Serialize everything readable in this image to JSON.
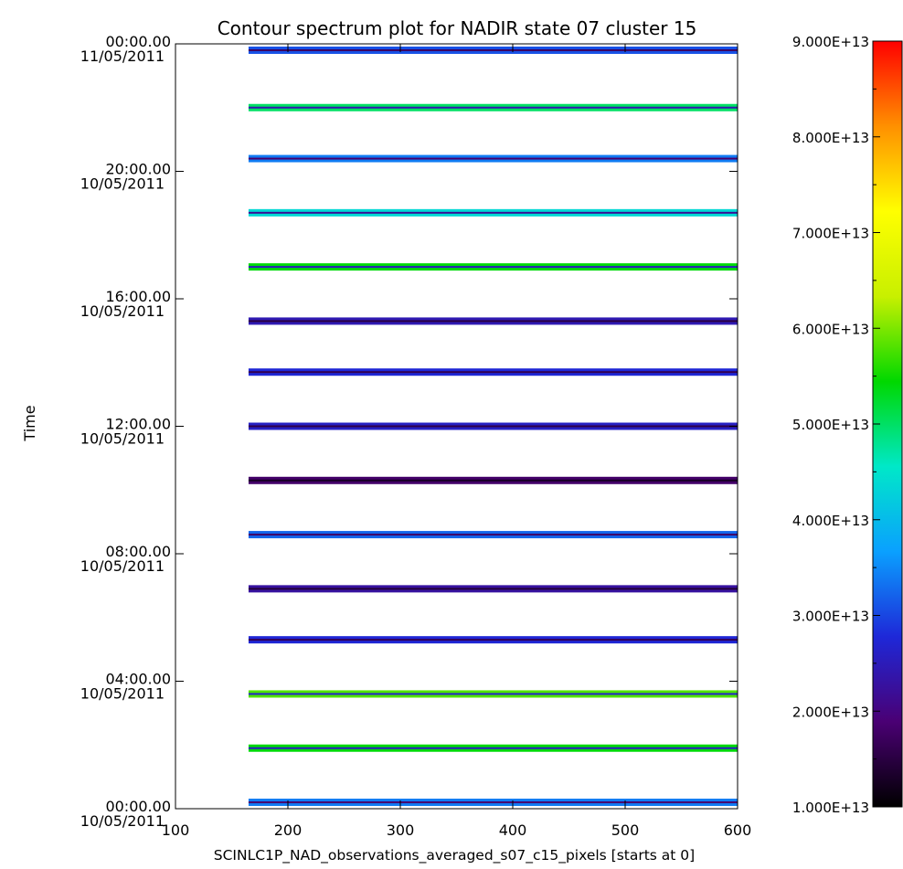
{
  "chart_data": {
    "type": "heatmap",
    "title": "Contour spectrum plot for NADIR state 07 cluster 15",
    "xlabel": "SCINLC1P_NAD_observations_averaged_s07_c15_pixels [starts at 0]",
    "ylabel": "Time",
    "xlim": [
      100,
      600
    ],
    "x_ticks": [
      100,
      200,
      300,
      400,
      500,
      600
    ],
    "x_tick_labels": [
      "100",
      "200",
      "300",
      "400",
      "500",
      "600"
    ],
    "ylim_hours": [
      0,
      24
    ],
    "y_ticks": [
      {
        "hours": 0,
        "time": "00:00.00",
        "date": "10/05/2011"
      },
      {
        "hours": 4,
        "time": "04:00.00",
        "date": "10/05/2011"
      },
      {
        "hours": 8,
        "time": "08:00.00",
        "date": "10/05/2011"
      },
      {
        "hours": 12,
        "time": "12:00.00",
        "date": "10/05/2011"
      },
      {
        "hours": 16,
        "time": "16:00.00",
        "date": "10/05/2011"
      },
      {
        "hours": 20,
        "time": "20:00.00",
        "date": "10/05/2011"
      },
      {
        "hours": 24,
        "time": "00:00.00",
        "date": "11/05/2011"
      }
    ],
    "observations": {
      "x_start": 165,
      "x_end": 600,
      "times_hours": [
        0.2,
        1.9,
        3.6,
        5.3,
        6.9,
        8.6,
        10.3,
        12.0,
        13.7,
        15.3,
        17.0,
        18.7,
        20.4,
        22.0,
        23.8
      ],
      "levels": [
        0.3,
        0.55,
        0.6,
        0.22,
        0.16,
        0.28,
        0.1,
        0.2,
        0.22,
        0.18,
        0.55,
        0.42,
        0.3,
        0.5,
        0.26
      ]
    },
    "colorbar": {
      "min": 10000000000000.0,
      "max": 90000000000000.0,
      "ticks": [
        "1.000E+13",
        "2.000E+13",
        "3.000E+13",
        "4.000E+13",
        "5.000E+13",
        "6.000E+13",
        "7.000E+13",
        "8.000E+13",
        "9.000E+13"
      ],
      "colormap": [
        "#000000",
        "#4a0074",
        "#1e28d8",
        "#0aa0ff",
        "#00e8c8",
        "#00d800",
        "#c8f000",
        "#ffff00",
        "#ff9000",
        "#ff0000"
      ]
    },
    "grid": false
  }
}
